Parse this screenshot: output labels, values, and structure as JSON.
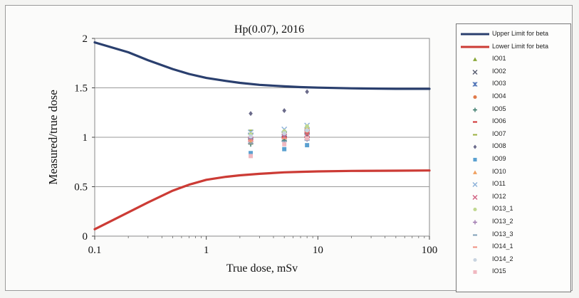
{
  "chart_data": {
    "type": "scatter",
    "title": "Hp(0.07), 2016",
    "xlabel": "True dose, mSv",
    "ylabel": "Measured/true dose",
    "xscale": "log",
    "xlim": [
      0.1,
      100
    ],
    "ylim": [
      0,
      2
    ],
    "x_ticks": [
      "0.1",
      "1",
      "10",
      "100"
    ],
    "y_ticks": [
      "0",
      "0.5",
      "1",
      "1.5",
      "2"
    ],
    "grid": "horizontal",
    "legend_position": "right",
    "lines": [
      {
        "name": "Upper Limit for beta",
        "color": "#2a3f6e",
        "x": [
          0.1,
          0.2,
          0.3,
          0.5,
          0.7,
          1,
          1.5,
          2,
          3,
          5,
          7,
          10,
          20,
          50,
          100
        ],
        "y": [
          1.96,
          1.86,
          1.78,
          1.69,
          1.64,
          1.6,
          1.57,
          1.55,
          1.53,
          1.515,
          1.507,
          1.502,
          1.495,
          1.49,
          1.49
        ]
      },
      {
        "name": "Lower Limit for beta",
        "color": "#cc3b35",
        "x": [
          0.1,
          0.15,
          0.2,
          0.3,
          0.5,
          0.7,
          1,
          1.5,
          2,
          3,
          5,
          7,
          10,
          20,
          50,
          100
        ],
        "y": [
          0.07,
          0.17,
          0.24,
          0.34,
          0.46,
          0.52,
          0.57,
          0.6,
          0.615,
          0.63,
          0.645,
          0.65,
          0.655,
          0.66,
          0.662,
          0.664
        ]
      }
    ],
    "series": [
      {
        "name": "IO01",
        "marker": "triangle",
        "color": "#8aa83a",
        "x": [
          2.5,
          5,
          8
        ],
        "y": [
          1.02,
          1.05,
          1.08
        ]
      },
      {
        "name": "IO02",
        "marker": "x",
        "color": "#555a6e",
        "x": [
          2.5,
          5,
          8
        ],
        "y": [
          0.96,
          0.98,
          1.02
        ]
      },
      {
        "name": "IO03",
        "marker": "star",
        "color": "#4a6fb5",
        "x": [
          2.5,
          5,
          8
        ],
        "y": [
          1.02,
          1.03,
          1.05
        ]
      },
      {
        "name": "IO04",
        "marker": "circle",
        "color": "#e07a4a",
        "x": [
          2.5,
          5,
          8
        ],
        "y": [
          1.0,
          1.02,
          1.04
        ]
      },
      {
        "name": "IO05",
        "marker": "plus",
        "color": "#3a7a6a",
        "x": [
          2.5,
          5,
          8
        ],
        "y": [
          0.93,
          0.97,
          1.0
        ]
      },
      {
        "name": "IO06",
        "marker": "dash",
        "color": "#d03030",
        "x": [
          2.5,
          5,
          8
        ],
        "y": [
          1.0,
          1.0,
          1.0
        ]
      },
      {
        "name": "IO07",
        "marker": "dash",
        "color": "#9ab040",
        "x": [
          2.5,
          5,
          8
        ],
        "y": [
          1.07,
          1.05,
          1.09
        ]
      },
      {
        "name": "IO08",
        "marker": "diamond",
        "color": "#6a6a8a",
        "x": [
          2.5,
          5,
          8
        ],
        "y": [
          1.24,
          1.27,
          1.46
        ]
      },
      {
        "name": "IO09",
        "marker": "square",
        "color": "#5aa0d0",
        "x": [
          2.5,
          5,
          8
        ],
        "y": [
          0.84,
          0.88,
          0.92
        ]
      },
      {
        "name": "IO10",
        "marker": "triangle",
        "color": "#f0a060",
        "x": [
          2.5,
          5,
          8
        ],
        "y": [
          0.95,
          1.0,
          1.1
        ]
      },
      {
        "name": "IO11",
        "marker": "x",
        "color": "#8ab0d8",
        "x": [
          2.5,
          5,
          8
        ],
        "y": [
          1.05,
          1.08,
          1.12
        ]
      },
      {
        "name": "IO12",
        "marker": "x",
        "color": "#d06080",
        "x": [
          2.5,
          5,
          8
        ],
        "y": [
          0.98,
          1.01,
          1.03
        ]
      },
      {
        "name": "IO13_1",
        "marker": "circle",
        "color": "#c0d890",
        "x": [
          2.5,
          5,
          8
        ],
        "y": [
          1.03,
          1.06,
          1.11
        ]
      },
      {
        "name": "IO13_2",
        "marker": "plus",
        "color": "#a07ab0",
        "x": [
          2.5,
          5,
          8
        ],
        "y": [
          0.99,
          1.02,
          0.98
        ]
      },
      {
        "name": "IO13_3",
        "marker": "dash",
        "color": "#80a0b8",
        "x": [
          2.5,
          5,
          8
        ],
        "y": [
          0.94,
          0.96,
          0.97
        ]
      },
      {
        "name": "IO14_1",
        "marker": "dash",
        "color": "#f09080",
        "x": [
          2.5,
          5,
          8
        ],
        "y": [
          0.97,
          0.99,
          1.06
        ]
      },
      {
        "name": "IO14_2",
        "marker": "circle",
        "color": "#c8d4e0",
        "x": [
          2.5,
          5,
          8
        ],
        "y": [
          1.01,
          1.04,
          1.07
        ]
      },
      {
        "name": "IO15",
        "marker": "square",
        "color": "#f0b8c0",
        "x": [
          2.5,
          5,
          8
        ],
        "y": [
          0.81,
          0.93,
          0.99
        ]
      }
    ]
  }
}
